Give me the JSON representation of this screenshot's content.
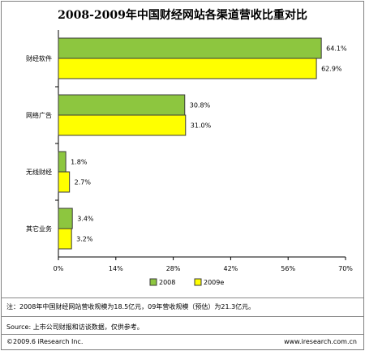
{
  "chart_data": {
    "type": "bar",
    "orientation": "horizontal",
    "title": "2008-2009年中国财经网站各渠道营收比重对比",
    "categories": [
      "财经软件",
      "网络广告",
      "无线财经",
      "其它业务"
    ],
    "series": [
      {
        "name": "2008",
        "values": [
          64.1,
          30.8,
          1.8,
          3.4
        ],
        "labels": [
          "64.1%",
          "30.8%",
          "1.8%",
          "3.4%"
        ],
        "color": "#8dc63f",
        "stroke": "#5a8a1e"
      },
      {
        "name": "2009e",
        "values": [
          62.9,
          31.0,
          2.7,
          3.2
        ],
        "labels": [
          "62.9%",
          "31.0%",
          "2.7%",
          "3.2%"
        ],
        "color": "#ffff00",
        "stroke": "#b7b700"
      }
    ],
    "xlim": [
      0,
      70
    ],
    "xticks": [
      "0%",
      "14%",
      "28%",
      "42%",
      "56%",
      "70%"
    ],
    "grid": false,
    "legend_position": "bottom"
  },
  "notes": {
    "note": "注：2008年中国财经网站营收规模为18.5亿元，09年营收规模（预估）为21.3亿元。",
    "source": "Source: 上市公司财报和访谈数据，仅供参考。",
    "copyright": "©2009.6 iResearch Inc.",
    "website": "www.iresearch.com.cn"
  }
}
